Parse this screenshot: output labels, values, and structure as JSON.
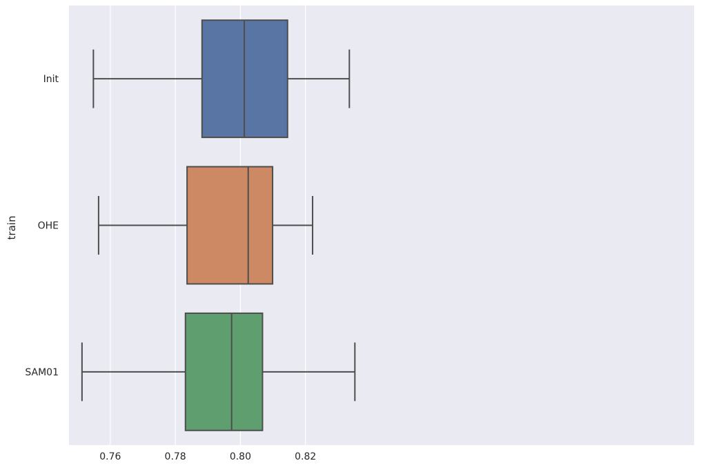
{
  "chart_data": {
    "type": "boxplot",
    "orientation": "horizontal",
    "title": "",
    "xlabel": "",
    "ylabel": "train",
    "xlim": [
      0.7473,
      0.9395
    ],
    "xticks": [
      0.76,
      0.78,
      0.8,
      0.82
    ],
    "xtick_labels": [
      "0.76",
      "0.78",
      "0.80",
      "0.82"
    ],
    "grid": true,
    "legend": "none",
    "style": {
      "background": "#eaeaf2",
      "grid_color": "#ffffff",
      "line_color": "#4d4d4d",
      "text_color": "#262626"
    },
    "categories": [
      "Init",
      "OHE",
      "SAM01"
    ],
    "series": [
      {
        "category": "Init",
        "color": "#5875a4",
        "whisker_low": 0.7548,
        "q1": 0.7882,
        "median": 0.8012,
        "q3": 0.8145,
        "whisker_high": 0.8335
      },
      {
        "category": "OHE",
        "color": "#cc8963",
        "whisker_low": 0.7564,
        "q1": 0.7836,
        "median": 0.8024,
        "q3": 0.8099,
        "whisker_high": 0.8222
      },
      {
        "category": "SAM01",
        "color": "#5f9e6e",
        "whisker_low": 0.7513,
        "q1": 0.7831,
        "median": 0.7973,
        "q3": 0.8068,
        "whisker_high": 0.8352
      }
    ]
  }
}
